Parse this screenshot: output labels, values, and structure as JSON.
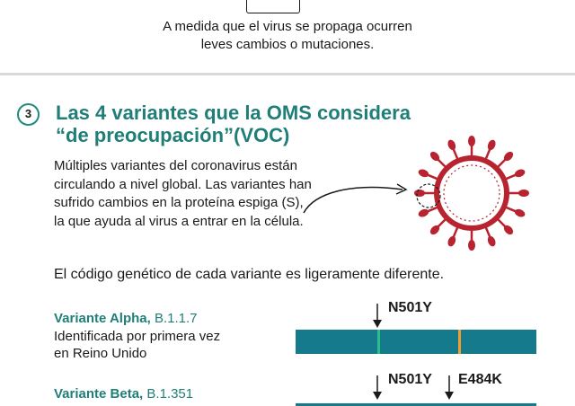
{
  "intro": {
    "line1": "A medida que el virus se propaga ocurren",
    "line2": "leves cambios o mutaciones."
  },
  "section": {
    "number": "3",
    "title_line1": "Las 4 variantes que la OMS considera",
    "title_line2": "“de preocupación”(VOC)"
  },
  "description": {
    "line1": "Múltiples variantes del coronavirus están",
    "line2": "circulando a nivel global. Las variantes han",
    "line3": "sufrido cambios en la proteína espiga (S),",
    "line4": "la que ayuda al virus a entrar en la célula."
  },
  "genetic_note": "El código genético de cada variante es ligeramente diferente.",
  "variants": [
    {
      "name": "Variante Alpha,",
      "code": "B.1.1.7",
      "desc_line1": "Identificada por primera vez",
      "desc_line2": "en Reino Unido",
      "mutations": [
        "N501Y"
      ]
    },
    {
      "name": "Variante Beta,",
      "code": "B.1.351",
      "mutations": [
        "N501Y",
        "E484K"
      ]
    }
  ],
  "colors": {
    "teal_title": "#1f7f78",
    "genome_bar": "#157a8c",
    "mutation_green": "#2bbf8a",
    "mutation_orange": "#f0a030",
    "virus_red": "#b8232f"
  }
}
